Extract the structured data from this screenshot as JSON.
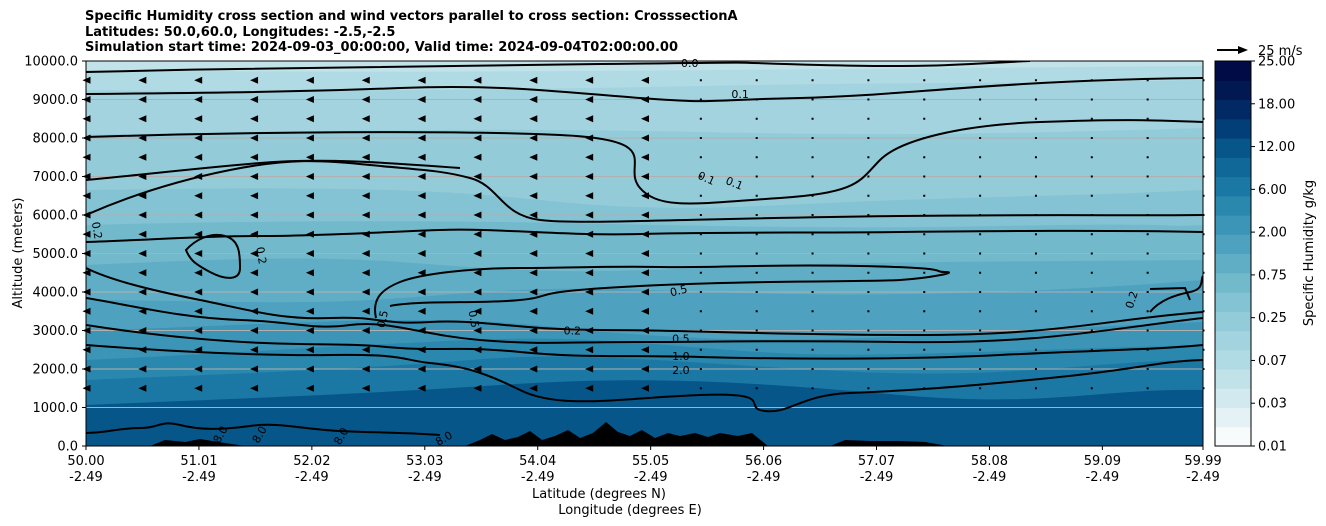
{
  "chart_data": {
    "type": "contour-cross-section",
    "title": [
      "Specific Humidity cross section and wind vectors parallel to cross section: CrosssectionA",
      "Latitudes: 50.0,60.0, Longitudes: -2.5,-2.5",
      "Simulation start time: 2024-09-03_00:00:00, Valid time: 2024-09-04T02:00:00.00"
    ],
    "xlabel": "Latitude (degrees N)",
    "xlabel2": "Longitude (degrees E)",
    "ylabel": "Altitude (meters)",
    "x_range": [
      50.0,
      59.99
    ],
    "ylim": [
      0,
      10000
    ],
    "x_ticks": [
      {
        "lat": "50.00",
        "lon": "-2.49",
        "v": 50.0
      },
      {
        "lat": "51.01",
        "lon": "-2.49",
        "v": 51.01
      },
      {
        "lat": "52.02",
        "lon": "-2.49",
        "v": 52.02
      },
      {
        "lat": "53.03",
        "lon": "-2.49",
        "v": 53.03
      },
      {
        "lat": "54.04",
        "lon": "-2.49",
        "v": 54.04
      },
      {
        "lat": "55.05",
        "lon": "-2.49",
        "v": 55.05
      },
      {
        "lat": "56.06",
        "lon": "-2.49",
        "v": 56.06
      },
      {
        "lat": "57.07",
        "lon": "-2.49",
        "v": 57.07
      },
      {
        "lat": "58.08",
        "lon": "-2.49",
        "v": 58.08
      },
      {
        "lat": "59.09",
        "lon": "-2.49",
        "v": 59.09
      },
      {
        "lat": "59.99",
        "lon": "-2.49",
        "v": 59.99
      }
    ],
    "y_ticks": [
      {
        "label": "0.0",
        "v": 0
      },
      {
        "label": "1000.0",
        "v": 1000
      },
      {
        "label": "2000.0",
        "v": 2000
      },
      {
        "label": "3000.0",
        "v": 3000
      },
      {
        "label": "4000.0",
        "v": 4000
      },
      {
        "label": "5000.0",
        "v": 5000
      },
      {
        "label": "6000.0",
        "v": 6000
      },
      {
        "label": "7000.0",
        "v": 7000
      },
      {
        "label": "8000.0",
        "v": 8000
      },
      {
        "label": "9000.0",
        "v": 9000
      },
      {
        "label": "10000.0",
        "v": 10000
      }
    ],
    "grid": true,
    "colorbar": {
      "label": "Specific Humidity g/kg",
      "levels": [
        "0.01",
        "0.02",
        "0.03",
        "0.05",
        "0.07",
        "0.1",
        "0.25",
        "0.5",
        "0.75",
        "1.0",
        "2.00",
        "4.00",
        "6.00",
        "8.00",
        "12.00",
        "15.00",
        "18.00",
        "20.00",
        "25.00"
      ],
      "tick_labels": [
        "0.01",
        "0.03",
        "0.07",
        "0.25",
        "0.75",
        "2.00",
        "6.00",
        "12.00",
        "18.00",
        "25.00"
      ],
      "colors": [
        "#f7fbfc",
        "#e4f2f5",
        "#d2eaef",
        "#c1e2e9",
        "#b1dbe4",
        "#a2d3df",
        "#93cbd9",
        "#83c3d3",
        "#72b9cc",
        "#60aec6",
        "#4ea2bf",
        "#3c95b7",
        "#2a87ae",
        "#1b78a4",
        "#0f6898",
        "#06568a",
        "#023f78",
        "#012a65",
        "#011852",
        "#010b45"
      ]
    },
    "wind_reference": {
      "label": "25 m/s",
      "value": 25
    },
    "contour_labels": [
      {
        "text": "0.0",
        "x": 55.4,
        "y": 9950,
        "rot": 0
      },
      {
        "text": "0.1",
        "x": 55.85,
        "y": 9140,
        "rot": 0
      },
      {
        "text": "0.1",
        "x": 55.55,
        "y": 6960,
        "rot": 24
      },
      {
        "text": "0.1",
        "x": 55.8,
        "y": 6830,
        "rot": 22
      },
      {
        "text": "0.2",
        "x": 50.1,
        "y": 5600,
        "rot": 80
      },
      {
        "text": "0.2",
        "x": 51.57,
        "y": 4950,
        "rot": 80
      },
      {
        "text": "0.2",
        "x": 59.35,
        "y": 3800,
        "rot": -72
      },
      {
        "text": "0.5",
        "x": 55.3,
        "y": 4040,
        "rot": -14
      },
      {
        "text": "0.5",
        "x": 52.65,
        "y": 3300,
        "rot": -78
      },
      {
        "text": "0.5",
        "x": 53.47,
        "y": 3300,
        "rot": 80
      },
      {
        "text": "0.2",
        "x": 54.35,
        "y": 3000,
        "rot": 0
      },
      {
        "text": "0.5",
        "x": 55.32,
        "y": 2790,
        "rot": 0
      },
      {
        "text": "1.0",
        "x": 55.32,
        "y": 2340,
        "rot": 0
      },
      {
        "text": "2.0",
        "x": 55.32,
        "y": 1970,
        "rot": 0
      },
      {
        "text": "8.0",
        "x": 51.2,
        "y": 300,
        "rot": -60
      },
      {
        "text": "8.0",
        "x": 51.55,
        "y": 300,
        "rot": -60
      },
      {
        "text": "8.0",
        "x": 52.28,
        "y": 260,
        "rot": -60
      },
      {
        "text": "8.0",
        "x": 53.2,
        "y": 200,
        "rot": -30
      }
    ]
  }
}
